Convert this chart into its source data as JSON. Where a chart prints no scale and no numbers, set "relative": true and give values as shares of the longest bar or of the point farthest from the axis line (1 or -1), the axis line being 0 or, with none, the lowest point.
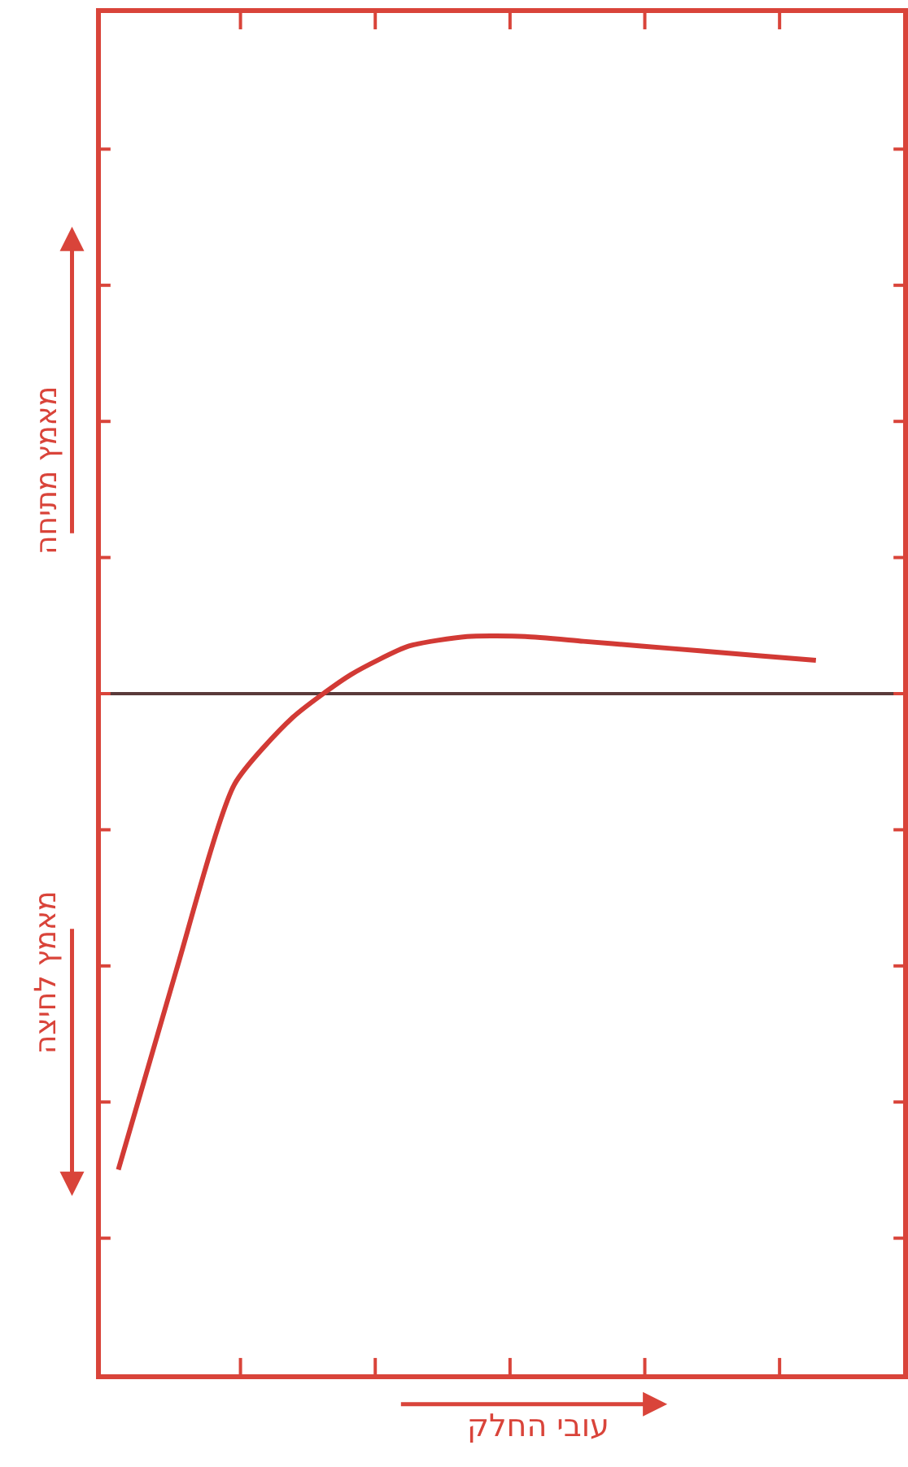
{
  "chart_data": {
    "type": "line",
    "relative": true,
    "ylabel": "מאמץ מתיחה",
    "annotations": [
      "מאמץ לחיצה",
      "עובי החלק"
    ],
    "categories": [
      null,
      null,
      null,
      null,
      null,
      null,
      null,
      null,
      null,
      null,
      null,
      null,
      null
    ],
    "marker": "none",
    "line_style": "solid",
    "series": [
      {
        "color": "#d23a35",
        "values": [
          -1,
          -0.58,
          -0.19,
          -0.05,
          0.04,
          0.1,
          0.12,
          0.12,
          0.11,
          0.1,
          0.09,
          0.08,
          0.07
        ]
      }
    ]
  }
}
